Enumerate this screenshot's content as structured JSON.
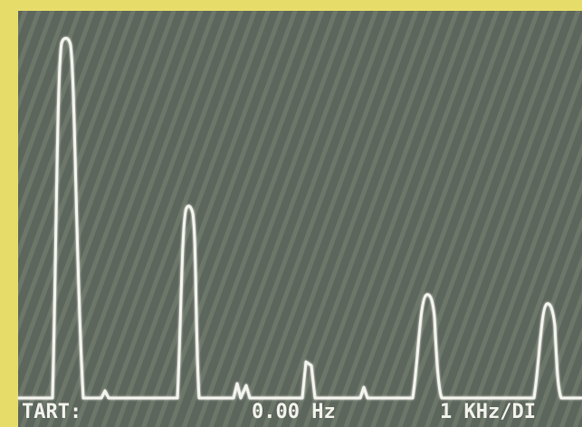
{
  "screen": {
    "labels": [
      "TART:",
      "0.00 Hz",
      "1 KHz/DI"
    ]
  }
}
